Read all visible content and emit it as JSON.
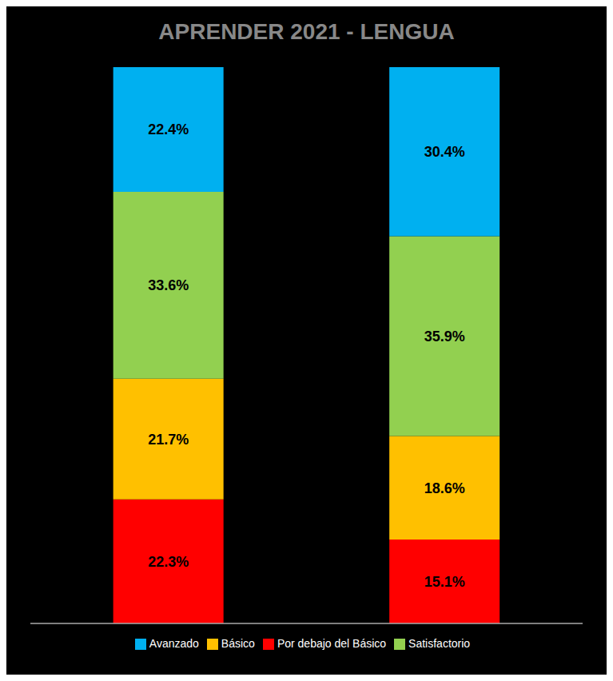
{
  "chart_data": {
    "type": "bar",
    "title": "APRENDER 2021 - LENGUA",
    "categories": [
      null,
      null
    ],
    "stacked": true,
    "series": [
      {
        "name": "Por debajo del Básico",
        "color": "#FF0000",
        "values": [
          22.3,
          15.1
        ],
        "value_labels": [
          "22.3%",
          "15.1%"
        ]
      },
      {
        "name": "Básico",
        "color": "#FFC000",
        "values": [
          21.7,
          18.6
        ],
        "value_labels": [
          "21.7%",
          "18.6%"
        ]
      },
      {
        "name": "Satisfactorio",
        "color": "#92D050",
        "values": [
          33.6,
          35.9
        ],
        "value_labels": [
          "33.6%",
          "35.9%"
        ]
      },
      {
        "name": "Avanzado",
        "color": "#00B0F0",
        "values": [
          22.4,
          30.4
        ],
        "value_labels": [
          "22.4%",
          "30.4%"
        ]
      }
    ],
    "ylim": [
      0,
      100
    ],
    "data_labels": true,
    "tick_labels": false,
    "grid": false,
    "legend": "bottom"
  }
}
